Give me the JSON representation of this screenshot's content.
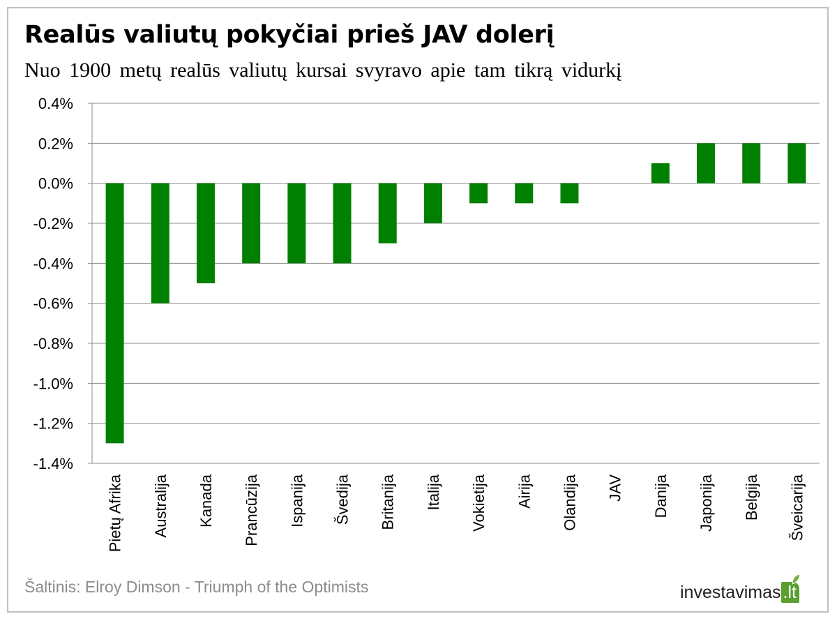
{
  "header": {
    "title": "Realūs valiutų pokyčiai prieš JAV dolerį",
    "subtitle": "Nuo 1900 metų realūs valiutų kursai svyravo apie tam tikrą vidurkį"
  },
  "footer": {
    "source": "Šaltinis: Elroy Dimson - Triumph  of the Optimists",
    "brand_name": "investavimas",
    "brand_tld": ".lt"
  },
  "colors": {
    "bar": "#008000",
    "grid": "#8c8c8c",
    "brand": "#5a9e2f"
  },
  "chart_data": {
    "type": "bar",
    "title": "Realūs valiutų pokyčiai prieš JAV dolerį",
    "subtitle": "Nuo 1900 metų realūs valiutų kursai svyravo apie tam tikrą vidurkį",
    "categories": [
      "Pietų Afrika",
      "Australija",
      "Kanada",
      "Prancūzija",
      "Ispanija",
      "Švedija",
      "Britanija",
      "Italija",
      "Vokietija",
      "Airija",
      "Olandija",
      "JAV",
      "Danija",
      "Japonija",
      "Belgija",
      "Šveicarija"
    ],
    "values": [
      -1.3,
      -0.6,
      -0.5,
      -0.4,
      -0.4,
      -0.4,
      -0.3,
      -0.2,
      -0.1,
      -0.1,
      -0.1,
      0.0,
      0.1,
      0.2,
      0.2,
      0.2
    ],
    "ylim": [
      -1.4,
      0.4
    ],
    "yticks": [
      0.4,
      0.2,
      0.0,
      -0.2,
      -0.4,
      -0.6,
      -0.8,
      -1.0,
      -1.2,
      -1.4
    ],
    "ytick_labels": [
      "0.4%",
      "0.2%",
      "0.0%",
      "-0.2%",
      "-0.4%",
      "-0.6%",
      "-0.8%",
      "-1.0%",
      "-1.2%",
      "-1.4%"
    ],
    "xlabel": "",
    "ylabel": "",
    "grid": true,
    "legend": "none"
  }
}
